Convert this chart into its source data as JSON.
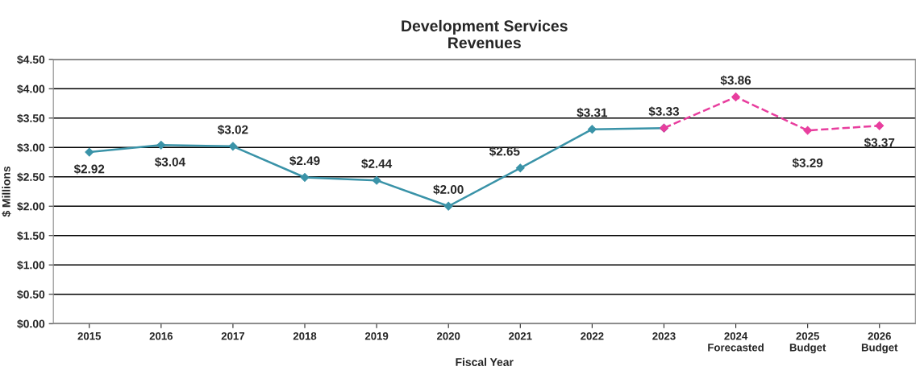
{
  "chart_data": {
    "type": "line",
    "title": "Development Services\nRevenues",
    "xlabel": "Fiscal Year",
    "ylabel": "$ Millions",
    "categories": [
      "2015",
      "2016",
      "2017",
      "2018",
      "2019",
      "2020",
      "2021",
      "2022",
      "2023",
      "2024\nForecasted",
      "2025\nBudget",
      "2026\nBudget"
    ],
    "series": [
      {
        "color": "#3a93a8",
        "line_style": "solid",
        "values": [
          2.92,
          3.04,
          3.02,
          2.49,
          2.44,
          2.0,
          2.65,
          3.31,
          3.33,
          null,
          null,
          null
        ],
        "value_labels": [
          "$2.92",
          "$3.04",
          "$3.02",
          "$2.49",
          "$2.44",
          "$2.00",
          "$2.65",
          "$3.31",
          "$3.33",
          null,
          null,
          null
        ]
      },
      {
        "color": "#e83e9e",
        "line_style": "dashed",
        "values": [
          null,
          null,
          null,
          null,
          null,
          null,
          null,
          null,
          3.33,
          3.86,
          3.29,
          3.37
        ],
        "value_labels": [
          null,
          null,
          null,
          null,
          null,
          null,
          null,
          null,
          null,
          "$3.86",
          "$3.29",
          "$3.37"
        ]
      }
    ],
    "ylim": [
      0,
      4.5
    ],
    "yticks": [
      {
        "value": 0,
        "label": "$0.00"
      },
      {
        "value": 0.5,
        "label": "$0.50"
      },
      {
        "value": 1,
        "label": "$1.00"
      },
      {
        "value": 1.5,
        "label": "$1.50"
      },
      {
        "value": 2,
        "label": "$2.00"
      },
      {
        "value": 2.5,
        "label": "$2.50"
      },
      {
        "value": 3,
        "label": "$3.00"
      },
      {
        "value": 3.5,
        "label": "$3.50"
      },
      {
        "value": 4,
        "label": "$4.00"
      },
      {
        "value": 4.5,
        "label": "$4.50"
      }
    ],
    "grid": "y",
    "marker": "diamond",
    "legend": false
  }
}
